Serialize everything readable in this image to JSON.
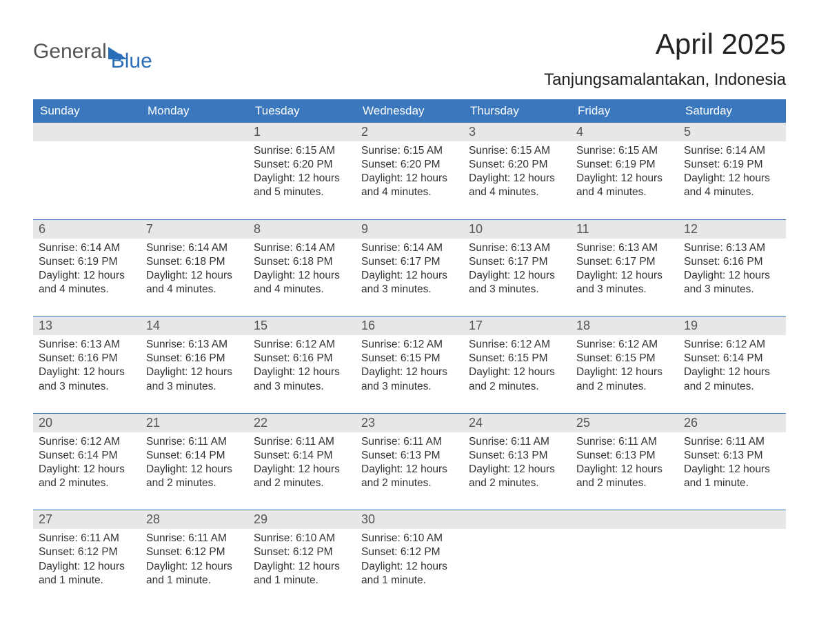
{
  "logo": {
    "word1": "General",
    "word2": "Blue"
  },
  "title": "April 2025",
  "location": "Tanjungsamalantakan, Indonesia",
  "colors": {
    "header_bg": "#3a77bd",
    "header_text": "#ffffff",
    "daynum_bg": "#e7e7e7",
    "daynum_text": "#555555",
    "body_text": "#333333",
    "week_border": "#3a77bd",
    "logo_gray": "#555555",
    "logo_blue": "#2a6db8",
    "page_bg": "#ffffff"
  },
  "weekday_labels": [
    "Sunday",
    "Monday",
    "Tuesday",
    "Wednesday",
    "Thursday",
    "Friday",
    "Saturday"
  ],
  "weeks": [
    [
      {
        "day": "",
        "sunrise": "",
        "sunset": "",
        "daylight": ""
      },
      {
        "day": "",
        "sunrise": "",
        "sunset": "",
        "daylight": ""
      },
      {
        "day": "1",
        "sunrise": "Sunrise: 6:15 AM",
        "sunset": "Sunset: 6:20 PM",
        "daylight": "Daylight: 12 hours and 5 minutes."
      },
      {
        "day": "2",
        "sunrise": "Sunrise: 6:15 AM",
        "sunset": "Sunset: 6:20 PM",
        "daylight": "Daylight: 12 hours and 4 minutes."
      },
      {
        "day": "3",
        "sunrise": "Sunrise: 6:15 AM",
        "sunset": "Sunset: 6:20 PM",
        "daylight": "Daylight: 12 hours and 4 minutes."
      },
      {
        "day": "4",
        "sunrise": "Sunrise: 6:15 AM",
        "sunset": "Sunset: 6:19 PM",
        "daylight": "Daylight: 12 hours and 4 minutes."
      },
      {
        "day": "5",
        "sunrise": "Sunrise: 6:14 AM",
        "sunset": "Sunset: 6:19 PM",
        "daylight": "Daylight: 12 hours and 4 minutes."
      }
    ],
    [
      {
        "day": "6",
        "sunrise": "Sunrise: 6:14 AM",
        "sunset": "Sunset: 6:19 PM",
        "daylight": "Daylight: 12 hours and 4 minutes."
      },
      {
        "day": "7",
        "sunrise": "Sunrise: 6:14 AM",
        "sunset": "Sunset: 6:18 PM",
        "daylight": "Daylight: 12 hours and 4 minutes."
      },
      {
        "day": "8",
        "sunrise": "Sunrise: 6:14 AM",
        "sunset": "Sunset: 6:18 PM",
        "daylight": "Daylight: 12 hours and 4 minutes."
      },
      {
        "day": "9",
        "sunrise": "Sunrise: 6:14 AM",
        "sunset": "Sunset: 6:17 PM",
        "daylight": "Daylight: 12 hours and 3 minutes."
      },
      {
        "day": "10",
        "sunrise": "Sunrise: 6:13 AM",
        "sunset": "Sunset: 6:17 PM",
        "daylight": "Daylight: 12 hours and 3 minutes."
      },
      {
        "day": "11",
        "sunrise": "Sunrise: 6:13 AM",
        "sunset": "Sunset: 6:17 PM",
        "daylight": "Daylight: 12 hours and 3 minutes."
      },
      {
        "day": "12",
        "sunrise": "Sunrise: 6:13 AM",
        "sunset": "Sunset: 6:16 PM",
        "daylight": "Daylight: 12 hours and 3 minutes."
      }
    ],
    [
      {
        "day": "13",
        "sunrise": "Sunrise: 6:13 AM",
        "sunset": "Sunset: 6:16 PM",
        "daylight": "Daylight: 12 hours and 3 minutes."
      },
      {
        "day": "14",
        "sunrise": "Sunrise: 6:13 AM",
        "sunset": "Sunset: 6:16 PM",
        "daylight": "Daylight: 12 hours and 3 minutes."
      },
      {
        "day": "15",
        "sunrise": "Sunrise: 6:12 AM",
        "sunset": "Sunset: 6:16 PM",
        "daylight": "Daylight: 12 hours and 3 minutes."
      },
      {
        "day": "16",
        "sunrise": "Sunrise: 6:12 AM",
        "sunset": "Sunset: 6:15 PM",
        "daylight": "Daylight: 12 hours and 3 minutes."
      },
      {
        "day": "17",
        "sunrise": "Sunrise: 6:12 AM",
        "sunset": "Sunset: 6:15 PM",
        "daylight": "Daylight: 12 hours and 2 minutes."
      },
      {
        "day": "18",
        "sunrise": "Sunrise: 6:12 AM",
        "sunset": "Sunset: 6:15 PM",
        "daylight": "Daylight: 12 hours and 2 minutes."
      },
      {
        "day": "19",
        "sunrise": "Sunrise: 6:12 AM",
        "sunset": "Sunset: 6:14 PM",
        "daylight": "Daylight: 12 hours and 2 minutes."
      }
    ],
    [
      {
        "day": "20",
        "sunrise": "Sunrise: 6:12 AM",
        "sunset": "Sunset: 6:14 PM",
        "daylight": "Daylight: 12 hours and 2 minutes."
      },
      {
        "day": "21",
        "sunrise": "Sunrise: 6:11 AM",
        "sunset": "Sunset: 6:14 PM",
        "daylight": "Daylight: 12 hours and 2 minutes."
      },
      {
        "day": "22",
        "sunrise": "Sunrise: 6:11 AM",
        "sunset": "Sunset: 6:14 PM",
        "daylight": "Daylight: 12 hours and 2 minutes."
      },
      {
        "day": "23",
        "sunrise": "Sunrise: 6:11 AM",
        "sunset": "Sunset: 6:13 PM",
        "daylight": "Daylight: 12 hours and 2 minutes."
      },
      {
        "day": "24",
        "sunrise": "Sunrise: 6:11 AM",
        "sunset": "Sunset: 6:13 PM",
        "daylight": "Daylight: 12 hours and 2 minutes."
      },
      {
        "day": "25",
        "sunrise": "Sunrise: 6:11 AM",
        "sunset": "Sunset: 6:13 PM",
        "daylight": "Daylight: 12 hours and 2 minutes."
      },
      {
        "day": "26",
        "sunrise": "Sunrise: 6:11 AM",
        "sunset": "Sunset: 6:13 PM",
        "daylight": "Daylight: 12 hours and 1 minute."
      }
    ],
    [
      {
        "day": "27",
        "sunrise": "Sunrise: 6:11 AM",
        "sunset": "Sunset: 6:12 PM",
        "daylight": "Daylight: 12 hours and 1 minute."
      },
      {
        "day": "28",
        "sunrise": "Sunrise: 6:11 AM",
        "sunset": "Sunset: 6:12 PM",
        "daylight": "Daylight: 12 hours and 1 minute."
      },
      {
        "day": "29",
        "sunrise": "Sunrise: 6:10 AM",
        "sunset": "Sunset: 6:12 PM",
        "daylight": "Daylight: 12 hours and 1 minute."
      },
      {
        "day": "30",
        "sunrise": "Sunrise: 6:10 AM",
        "sunset": "Sunset: 6:12 PM",
        "daylight": "Daylight: 12 hours and 1 minute."
      },
      {
        "day": "",
        "sunrise": "",
        "sunset": "",
        "daylight": ""
      },
      {
        "day": "",
        "sunrise": "",
        "sunset": "",
        "daylight": ""
      },
      {
        "day": "",
        "sunrise": "",
        "sunset": "",
        "daylight": ""
      }
    ]
  ]
}
